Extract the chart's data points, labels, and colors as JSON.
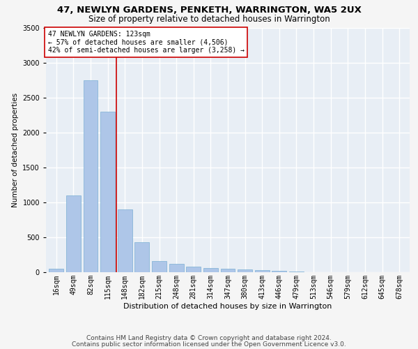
{
  "title1": "47, NEWLYN GARDENS, PENKETH, WARRINGTON, WA5 2UX",
  "title2": "Size of property relative to detached houses in Warrington",
  "xlabel": "Distribution of detached houses by size in Warrington",
  "ylabel": "Number of detached properties",
  "categories": [
    "16sqm",
    "49sqm",
    "82sqm",
    "115sqm",
    "148sqm",
    "182sqm",
    "215sqm",
    "248sqm",
    "281sqm",
    "314sqm",
    "347sqm",
    "380sqm",
    "413sqm",
    "446sqm",
    "479sqm",
    "513sqm",
    "546sqm",
    "579sqm",
    "612sqm",
    "645sqm",
    "678sqm"
  ],
  "values": [
    50,
    1100,
    2750,
    2300,
    900,
    430,
    160,
    120,
    80,
    60,
    50,
    40,
    30,
    20,
    8,
    5,
    4,
    3,
    2,
    2,
    1
  ],
  "bar_color": "#aec6e8",
  "bar_edgecolor": "#7aafd4",
  "vline_color": "#cc0000",
  "annotation_text": "47 NEWLYN GARDENS: 123sqm\n← 57% of detached houses are smaller (4,506)\n42% of semi-detached houses are larger (3,258) →",
  "annotation_box_color": "#ffffff",
  "annotation_box_edgecolor": "#cc0000",
  "ylim": [
    0,
    3500
  ],
  "yticks": [
    0,
    500,
    1000,
    1500,
    2000,
    2500,
    3000,
    3500
  ],
  "background_color": "#e8eef5",
  "grid_color": "#ffffff",
  "footer1": "Contains HM Land Registry data © Crown copyright and database right 2024.",
  "footer2": "Contains public sector information licensed under the Open Government Licence v3.0.",
  "title1_fontsize": 9.5,
  "title2_fontsize": 8.5,
  "xlabel_fontsize": 8,
  "ylabel_fontsize": 7.5,
  "tick_fontsize": 7,
  "annotation_fontsize": 7,
  "footer_fontsize": 6.5
}
